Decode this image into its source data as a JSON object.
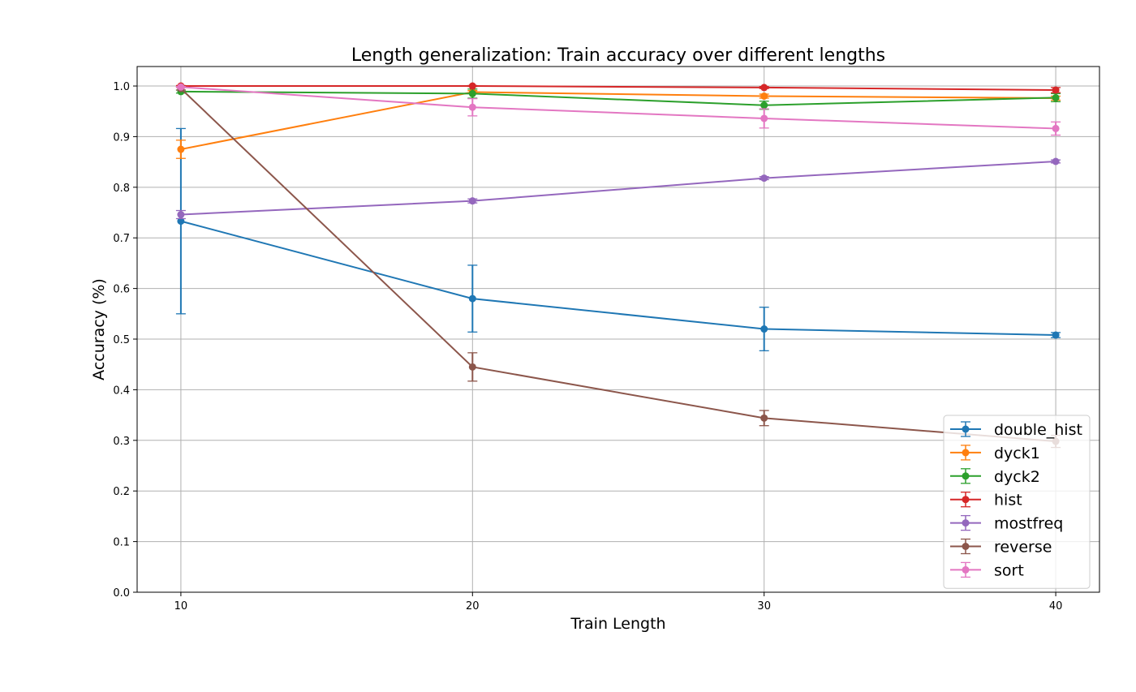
{
  "chart_data": {
    "type": "line",
    "title": "Length generalization: Train accuracy over different lengths",
    "xlabel": "Train Length",
    "ylabel": "Accuracy (%)",
    "x": [
      10,
      20,
      30,
      40
    ],
    "x_ticks": [
      "10",
      "20",
      "30",
      "40"
    ],
    "xlim": [
      8.5,
      41.5
    ],
    "ylim": [
      0.0,
      1.0385
    ],
    "y_ticks": [
      "0.0",
      "0.1",
      "0.2",
      "0.3",
      "0.4",
      "0.5",
      "0.6",
      "0.7",
      "0.8",
      "0.9",
      "1.0"
    ],
    "grid": true,
    "error_bars": true,
    "legend_position": "lower-right",
    "series": [
      {
        "name": "double_hist",
        "color": "#1f77b4",
        "values": [
          0.733,
          0.58,
          0.52,
          0.508
        ],
        "errors": [
          0.183,
          0.066,
          0.043,
          0.005
        ]
      },
      {
        "name": "dyck1",
        "color": "#ff7f0e",
        "values": [
          0.875,
          0.988,
          0.98,
          0.976
        ],
        "errors": [
          0.018,
          0.003,
          0.004,
          0.004
        ]
      },
      {
        "name": "dyck2",
        "color": "#2ca02c",
        "values": [
          0.989,
          0.985,
          0.962,
          0.977
        ],
        "errors": [
          0.003,
          0.009,
          0.008,
          0.008
        ]
      },
      {
        "name": "hist",
        "color": "#d62728",
        "values": [
          1.0,
          1.0,
          0.997,
          0.992
        ],
        "errors": [
          0.001,
          0.001,
          0.002,
          0.005
        ]
      },
      {
        "name": "mostfreq",
        "color": "#9467bd",
        "values": [
          0.746,
          0.773,
          0.818,
          0.851
        ],
        "errors": [
          0.008,
          0.004,
          0.003,
          0.003
        ]
      },
      {
        "name": "reverse",
        "color": "#8c564b",
        "values": [
          0.995,
          0.445,
          0.344,
          0.298
        ],
        "errors": [
          0.003,
          0.028,
          0.015,
          0.012
        ]
      },
      {
        "name": "sort",
        "color": "#e377c2",
        "values": [
          0.998,
          0.958,
          0.936,
          0.916
        ],
        "errors": [
          0.001,
          0.017,
          0.019,
          0.013
        ]
      }
    ]
  }
}
